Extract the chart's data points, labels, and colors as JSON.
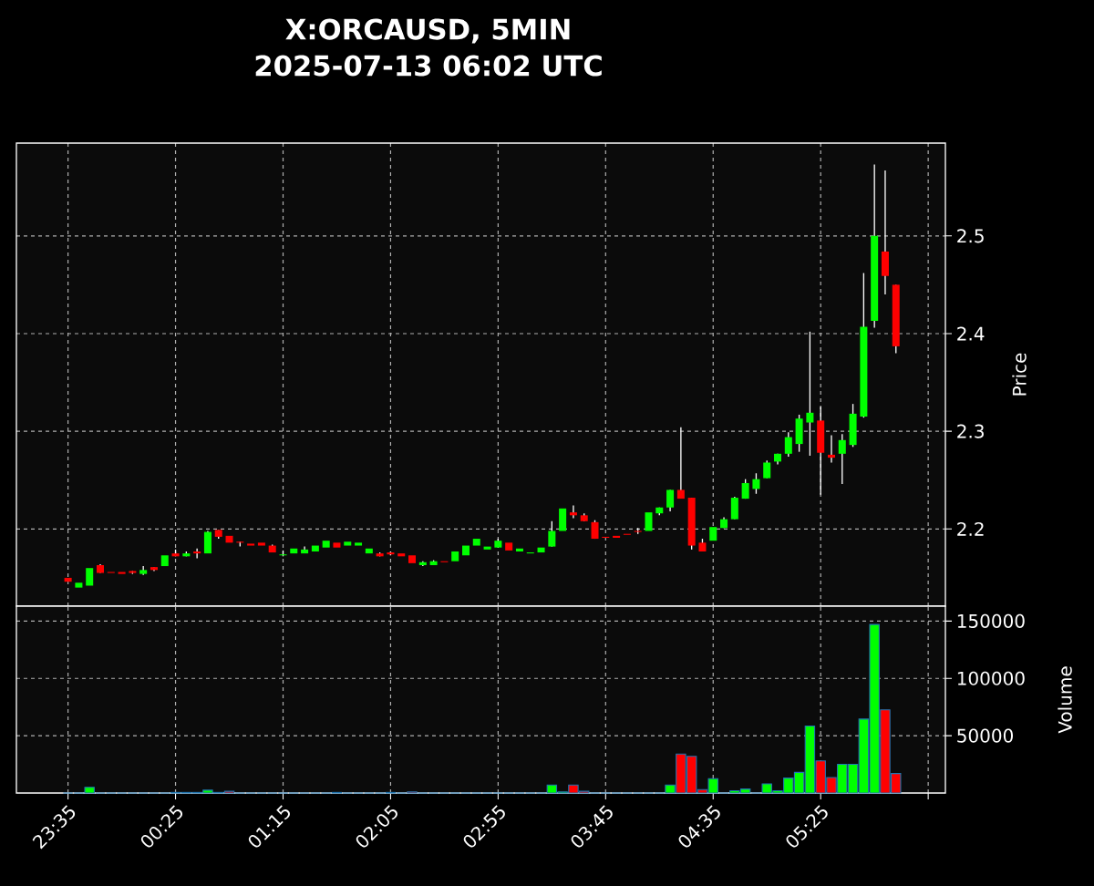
{
  "chart_data": [
    {
      "type": "candlestick",
      "title": "X:ORCAUSD, 5MIN",
      "subtitle": "2025-07-13 06:02 UTC",
      "ylabel": "Price",
      "grid": true,
      "tick_labels": "y",
      "x": [
        "2025-07-12T23:35",
        "2025-07-12T23:40",
        "2025-07-12T23:45",
        "2025-07-12T23:50",
        "2025-07-12T23:55",
        "2025-07-13T00:00",
        "2025-07-13T00:05",
        "2025-07-13T00:10",
        "2025-07-13T00:15",
        "2025-07-13T00:20",
        "2025-07-13T00:25",
        "2025-07-13T00:30",
        "2025-07-13T00:35",
        "2025-07-13T00:40",
        "2025-07-13T00:45",
        "2025-07-13T00:50",
        "2025-07-13T00:55",
        "2025-07-13T01:00",
        "2025-07-13T01:05",
        "2025-07-13T01:10",
        "2025-07-13T01:15",
        "2025-07-13T01:20",
        "2025-07-13T01:25",
        "2025-07-13T01:30",
        "2025-07-13T01:35",
        "2025-07-13T01:40",
        "2025-07-13T01:45",
        "2025-07-13T01:50",
        "2025-07-13T01:55",
        "2025-07-13T02:00",
        "2025-07-13T02:05",
        "2025-07-13T02:10",
        "2025-07-13T02:15",
        "2025-07-13T02:20",
        "2025-07-13T02:25",
        "2025-07-13T02:30",
        "2025-07-13T02:35",
        "2025-07-13T02:40",
        "2025-07-13T02:45",
        "2025-07-13T02:50",
        "2025-07-13T02:55",
        "2025-07-13T03:00",
        "2025-07-13T03:05",
        "2025-07-13T03:10",
        "2025-07-13T03:15",
        "2025-07-13T03:20",
        "2025-07-13T03:25",
        "2025-07-13T03:30",
        "2025-07-13T03:35",
        "2025-07-13T03:40",
        "2025-07-13T03:45",
        "2025-07-13T03:50",
        "2025-07-13T03:55",
        "2025-07-13T04:00",
        "2025-07-13T04:05",
        "2025-07-13T04:10",
        "2025-07-13T04:15",
        "2025-07-13T04:20",
        "2025-07-13T04:25",
        "2025-07-13T04:30",
        "2025-07-13T04:35",
        "2025-07-13T04:40",
        "2025-07-13T04:45",
        "2025-07-13T04:50",
        "2025-07-13T04:55",
        "2025-07-13T05:00",
        "2025-07-13T05:05",
        "2025-07-13T05:10",
        "2025-07-13T05:15",
        "2025-07-13T05:20",
        "2025-07-13T05:25",
        "2025-07-13T05:30",
        "2025-07-13T05:35",
        "2025-07-13T05:40",
        "2025-07-13T05:45",
        "2025-07-13T05:50",
        "2025-07-13T05:55",
        "2025-07-13T06:00"
      ],
      "ohlc": [
        [
          2.15,
          2.15,
          2.146,
          2.146
        ],
        [
          2.14,
          2.145,
          2.14,
          2.145
        ],
        [
          2.142,
          2.16,
          2.142,
          2.16
        ],
        [
          2.163,
          2.164,
          2.155,
          2.155
        ],
        [
          2.156,
          2.156,
          2.155,
          2.155
        ],
        [
          2.156,
          2.156,
          2.154,
          2.154
        ],
        [
          2.157,
          2.157,
          2.154,
          2.155
        ],
        [
          2.154,
          2.162,
          2.153,
          2.158
        ],
        [
          2.161,
          2.161,
          2.157,
          2.158
        ],
        [
          2.162,
          2.173,
          2.162,
          2.173
        ],
        [
          2.175,
          2.179,
          2.172,
          2.172
        ],
        [
          2.172,
          2.177,
          2.172,
          2.175
        ],
        [
          2.177,
          2.18,
          2.17,
          2.175
        ],
        [
          2.175,
          2.198,
          2.175,
          2.197
        ],
        [
          2.199,
          2.199,
          2.19,
          2.192
        ],
        [
          2.193,
          2.193,
          2.186,
          2.186
        ],
        [
          2.187,
          2.187,
          2.182,
          2.186
        ],
        [
          2.185,
          2.185,
          2.183,
          2.183
        ],
        [
          2.186,
          2.186,
          2.183,
          2.183
        ],
        [
          2.183,
          2.184,
          2.176,
          2.176
        ],
        [
          2.173,
          2.178,
          2.172,
          2.174
        ],
        [
          2.175,
          2.18,
          2.175,
          2.18
        ],
        [
          2.175,
          2.182,
          2.175,
          2.179
        ],
        [
          2.177,
          2.183,
          2.177,
          2.183
        ],
        [
          2.181,
          2.188,
          2.181,
          2.188
        ],
        [
          2.186,
          2.186,
          2.181,
          2.181
        ],
        [
          2.183,
          2.187,
          2.183,
          2.187
        ],
        [
          2.183,
          2.186,
          2.183,
          2.186
        ],
        [
          2.175,
          2.18,
          2.175,
          2.18
        ],
        [
          2.175,
          2.176,
          2.172,
          2.172
        ],
        [
          2.176,
          2.177,
          2.173,
          2.174
        ],
        [
          2.175,
          2.175,
          2.172,
          2.172
        ],
        [
          2.173,
          2.173,
          2.165,
          2.165
        ],
        [
          2.163,
          2.167,
          2.162,
          2.166
        ],
        [
          2.163,
          2.168,
          2.163,
          2.167
        ],
        [
          2.167,
          2.167,
          2.166,
          2.166
        ],
        [
          2.167,
          2.177,
          2.167,
          2.177
        ],
        [
          2.173,
          2.183,
          2.173,
          2.183
        ],
        [
          2.183,
          2.19,
          2.183,
          2.19
        ],
        [
          2.179,
          2.182,
          2.179,
          2.182
        ],
        [
          2.181,
          2.19,
          2.181,
          2.188
        ],
        [
          2.186,
          2.186,
          2.178,
          2.178
        ],
        [
          2.177,
          2.18,
          2.177,
          2.18
        ],
        [
          2.175,
          2.176,
          2.175,
          2.176
        ],
        [
          2.176,
          2.181,
          2.176,
          2.181
        ],
        [
          2.182,
          2.208,
          2.182,
          2.198
        ],
        [
          2.198,
          2.221,
          2.198,
          2.221
        ],
        [
          2.217,
          2.224,
          2.211,
          2.214
        ],
        [
          2.214,
          2.216,
          2.208,
          2.208
        ],
        [
          2.207,
          2.209,
          2.19,
          2.19
        ],
        [
          2.192,
          2.192,
          2.191,
          2.191
        ],
        [
          2.193,
          2.193,
          2.191,
          2.191
        ],
        [
          2.195,
          2.195,
          2.194,
          2.194
        ],
        [
          2.198,
          2.201,
          2.195,
          2.197
        ],
        [
          2.198,
          2.217,
          2.198,
          2.217
        ],
        [
          2.216,
          2.222,
          2.214,
          2.222
        ],
        [
          2.222,
          2.24,
          2.218,
          2.24
        ],
        [
          2.24,
          2.304,
          2.231,
          2.231
        ],
        [
          2.232,
          2.232,
          2.179,
          2.183
        ],
        [
          2.186,
          2.19,
          2.177,
          2.177
        ],
        [
          2.188,
          2.202,
          2.188,
          2.202
        ],
        [
          2.201,
          2.212,
          2.201,
          2.21
        ],
        [
          2.21,
          2.233,
          2.21,
          2.232
        ],
        [
          2.231,
          2.251,
          2.231,
          2.247
        ],
        [
          2.241,
          2.257,
          2.236,
          2.251
        ],
        [
          2.252,
          2.27,
          2.252,
          2.268
        ],
        [
          2.269,
          2.277,
          2.266,
          2.277
        ],
        [
          2.277,
          2.299,
          2.274,
          2.294
        ],
        [
          2.287,
          2.317,
          2.279,
          2.313
        ],
        [
          2.309,
          2.402,
          2.275,
          2.319
        ],
        [
          2.311,
          2.325,
          2.235,
          2.278
        ],
        [
          2.276,
          2.296,
          2.268,
          2.273
        ],
        [
          2.277,
          2.297,
          2.246,
          2.291
        ],
        [
          2.286,
          2.328,
          2.284,
          2.318
        ],
        [
          2.315,
          2.462,
          2.314,
          2.407
        ],
        [
          2.413,
          2.573,
          2.406,
          2.5
        ],
        [
          2.484,
          2.567,
          2.44,
          2.459
        ],
        [
          2.45,
          2.45,
          2.38,
          2.387
        ]
      ],
      "colors": [
        "#ff0000",
        "#00ff00",
        "#00ff00",
        "#ff0000",
        "#ff0000",
        "#ff0000",
        "#ff0000",
        "#00ff00",
        "#ff0000",
        "#00ff00",
        "#ff0000",
        "#00ff00",
        "#ff0000",
        "#00ff00",
        "#ff0000",
        "#ff0000",
        "#ff0000",
        "#ff0000",
        "#ff0000",
        "#ff0000",
        "#00ff00",
        "#00ff00",
        "#00ff00",
        "#00ff00",
        "#00ff00",
        "#ff0000",
        "#00ff00",
        "#00ff00",
        "#00ff00",
        "#ff0000",
        "#ff0000",
        "#ff0000",
        "#ff0000",
        "#00ff00",
        "#00ff00",
        "#ff0000",
        "#00ff00",
        "#00ff00",
        "#00ff00",
        "#00ff00",
        "#00ff00",
        "#ff0000",
        "#00ff00",
        "#00ff00",
        "#00ff00",
        "#00ff00",
        "#00ff00",
        "#ff0000",
        "#ff0000",
        "#ff0000",
        "#ff0000",
        "#ff0000",
        "#ff0000",
        "#ff0000",
        "#00ff00",
        "#00ff00",
        "#00ff00",
        "#ff0000",
        "#ff0000",
        "#ff0000",
        "#00ff00",
        "#00ff00",
        "#00ff00",
        "#00ff00",
        "#00ff00",
        "#00ff00",
        "#00ff00",
        "#00ff00",
        "#00ff00",
        "#00ff00",
        "#ff0000",
        "#ff0000",
        "#00ff00",
        "#00ff00",
        "#00ff00",
        "#00ff00",
        "#ff0000",
        "#ff0000"
      ],
      "xlim": [
        "2025-07-12T23:11",
        "2025-07-13T06:23"
      ],
      "xticks": [
        {
          "value": "2025-07-12T23:35",
          "label": null
        },
        {
          "value": "2025-07-13T00:25",
          "label": null
        },
        {
          "value": "2025-07-13T01:15",
          "label": null
        },
        {
          "value": "2025-07-13T02:05",
          "label": null
        },
        {
          "value": "2025-07-13T02:55",
          "label": null
        },
        {
          "value": "2025-07-13T03:45",
          "label": null
        },
        {
          "value": "2025-07-13T04:35",
          "label": null
        },
        {
          "value": "2025-07-13T05:25",
          "label": null
        },
        {
          "value": "2025-07-13T06:15",
          "label": null
        }
      ],
      "ylim": [
        2.121,
        2.595
      ],
      "yticks": [
        2.2,
        2.3,
        2.4,
        2.5
      ]
    },
    {
      "type": "bar",
      "ylabel": "Volume",
      "grid": true,
      "x": [
        "2025-07-12T23:35",
        "2025-07-12T23:40",
        "2025-07-12T23:45",
        "2025-07-12T23:50",
        "2025-07-12T23:55",
        "2025-07-13T00:00",
        "2025-07-13T00:05",
        "2025-07-13T00:10",
        "2025-07-13T00:15",
        "2025-07-13T00:20",
        "2025-07-13T00:25",
        "2025-07-13T00:30",
        "2025-07-13T00:35",
        "2025-07-13T00:40",
        "2025-07-13T00:45",
        "2025-07-13T00:50",
        "2025-07-13T00:55",
        "2025-07-13T01:00",
        "2025-07-13T01:05",
        "2025-07-13T01:10",
        "2025-07-13T01:15",
        "2025-07-13T01:20",
        "2025-07-13T01:25",
        "2025-07-13T01:30",
        "2025-07-13T01:35",
        "2025-07-13T01:40",
        "2025-07-13T01:45",
        "2025-07-13T01:50",
        "2025-07-13T01:55",
        "2025-07-13T02:00",
        "2025-07-13T02:05",
        "2025-07-13T02:10",
        "2025-07-13T02:15",
        "2025-07-13T02:20",
        "2025-07-13T02:25",
        "2025-07-13T02:30",
        "2025-07-13T02:35",
        "2025-07-13T02:40",
        "2025-07-13T02:45",
        "2025-07-13T02:50",
        "2025-07-13T02:55",
        "2025-07-13T03:00",
        "2025-07-13T03:05",
        "2025-07-13T03:10",
        "2025-07-13T03:15",
        "2025-07-13T03:20",
        "2025-07-13T03:25",
        "2025-07-13T03:30",
        "2025-07-13T03:35",
        "2025-07-13T03:40",
        "2025-07-13T03:45",
        "2025-07-13T03:50",
        "2025-07-13T03:55",
        "2025-07-13T04:00",
        "2025-07-13T04:05",
        "2025-07-13T04:10",
        "2025-07-13T04:15",
        "2025-07-13T04:20",
        "2025-07-13T04:25",
        "2025-07-13T04:30",
        "2025-07-13T04:35",
        "2025-07-13T04:40",
        "2025-07-13T04:45",
        "2025-07-13T04:50",
        "2025-07-13T04:55",
        "2025-07-13T05:00",
        "2025-07-13T05:05",
        "2025-07-13T05:10",
        "2025-07-13T05:15",
        "2025-07-13T05:20",
        "2025-07-13T05:25",
        "2025-07-13T05:30",
        "2025-07-13T05:35",
        "2025-07-13T05:40",
        "2025-07-13T05:45",
        "2025-07-13T05:50",
        "2025-07-13T05:55",
        "2025-07-13T06:00"
      ],
      "values": [
        0,
        0,
        5000,
        0,
        0,
        0,
        0,
        0,
        0,
        0,
        500,
        500,
        500,
        2500,
        500,
        1500,
        0,
        0,
        0,
        0,
        0,
        0,
        0,
        0,
        0,
        500,
        0,
        0,
        0,
        0,
        500,
        0,
        1000,
        0,
        0,
        0,
        0,
        0,
        0,
        0,
        0,
        0,
        0,
        0,
        0,
        7000,
        1000,
        7000,
        1500,
        0,
        0,
        0,
        0,
        0,
        0,
        0,
        7000,
        34000,
        32000,
        3000,
        12500,
        0,
        2000,
        3500,
        0,
        8000,
        2000,
        13000,
        18000,
        58500,
        28000,
        13500,
        25000,
        25000,
        64500,
        147000,
        72500,
        17000
      ],
      "colors": [
        "#ff0000",
        "#00ff00",
        "#00ff00",
        "#ff0000",
        "#ff0000",
        "#ff0000",
        "#ff0000",
        "#00ff00",
        "#ff0000",
        "#00ff00",
        "#ff0000",
        "#00ff00",
        "#ff0000",
        "#00ff00",
        "#ff0000",
        "#ff0000",
        "#ff0000",
        "#ff0000",
        "#ff0000",
        "#ff0000",
        "#00ff00",
        "#00ff00",
        "#00ff00",
        "#00ff00",
        "#00ff00",
        "#ff0000",
        "#00ff00",
        "#00ff00",
        "#00ff00",
        "#ff0000",
        "#ff0000",
        "#ff0000",
        "#ff0000",
        "#00ff00",
        "#00ff00",
        "#ff0000",
        "#00ff00",
        "#00ff00",
        "#00ff00",
        "#00ff00",
        "#00ff00",
        "#ff0000",
        "#00ff00",
        "#00ff00",
        "#00ff00",
        "#00ff00",
        "#00ff00",
        "#ff0000",
        "#ff0000",
        "#ff0000",
        "#ff0000",
        "#ff0000",
        "#ff0000",
        "#ff0000",
        "#00ff00",
        "#00ff00",
        "#00ff00",
        "#ff0000",
        "#ff0000",
        "#ff0000",
        "#00ff00",
        "#00ff00",
        "#00ff00",
        "#00ff00",
        "#00ff00",
        "#00ff00",
        "#00ff00",
        "#00ff00",
        "#00ff00",
        "#00ff00",
        "#ff0000",
        "#ff0000",
        "#00ff00",
        "#00ff00",
        "#00ff00",
        "#00ff00",
        "#ff0000",
        "#ff0000"
      ],
      "xlim": [
        "2025-07-12T23:11",
        "2025-07-13T06:23"
      ],
      "xticks": [
        {
          "value": "2025-07-12T23:35",
          "label": "23:35"
        },
        {
          "value": "2025-07-13T00:25",
          "label": "00:25"
        },
        {
          "value": "2025-07-13T01:15",
          "label": "01:15"
        },
        {
          "value": "2025-07-13T02:05",
          "label": "02:05"
        },
        {
          "value": "2025-07-13T02:55",
          "label": "02:55"
        },
        {
          "value": "2025-07-13T03:45",
          "label": "03:45"
        },
        {
          "value": "2025-07-13T04:35",
          "label": "04:35"
        },
        {
          "value": "2025-07-13T05:25",
          "label": "05:25"
        },
        {
          "value": "2025-07-13T06:15",
          "label": null
        }
      ],
      "ylim": [
        0,
        163000
      ],
      "yticks": [
        50000,
        100000,
        150000
      ]
    }
  ]
}
